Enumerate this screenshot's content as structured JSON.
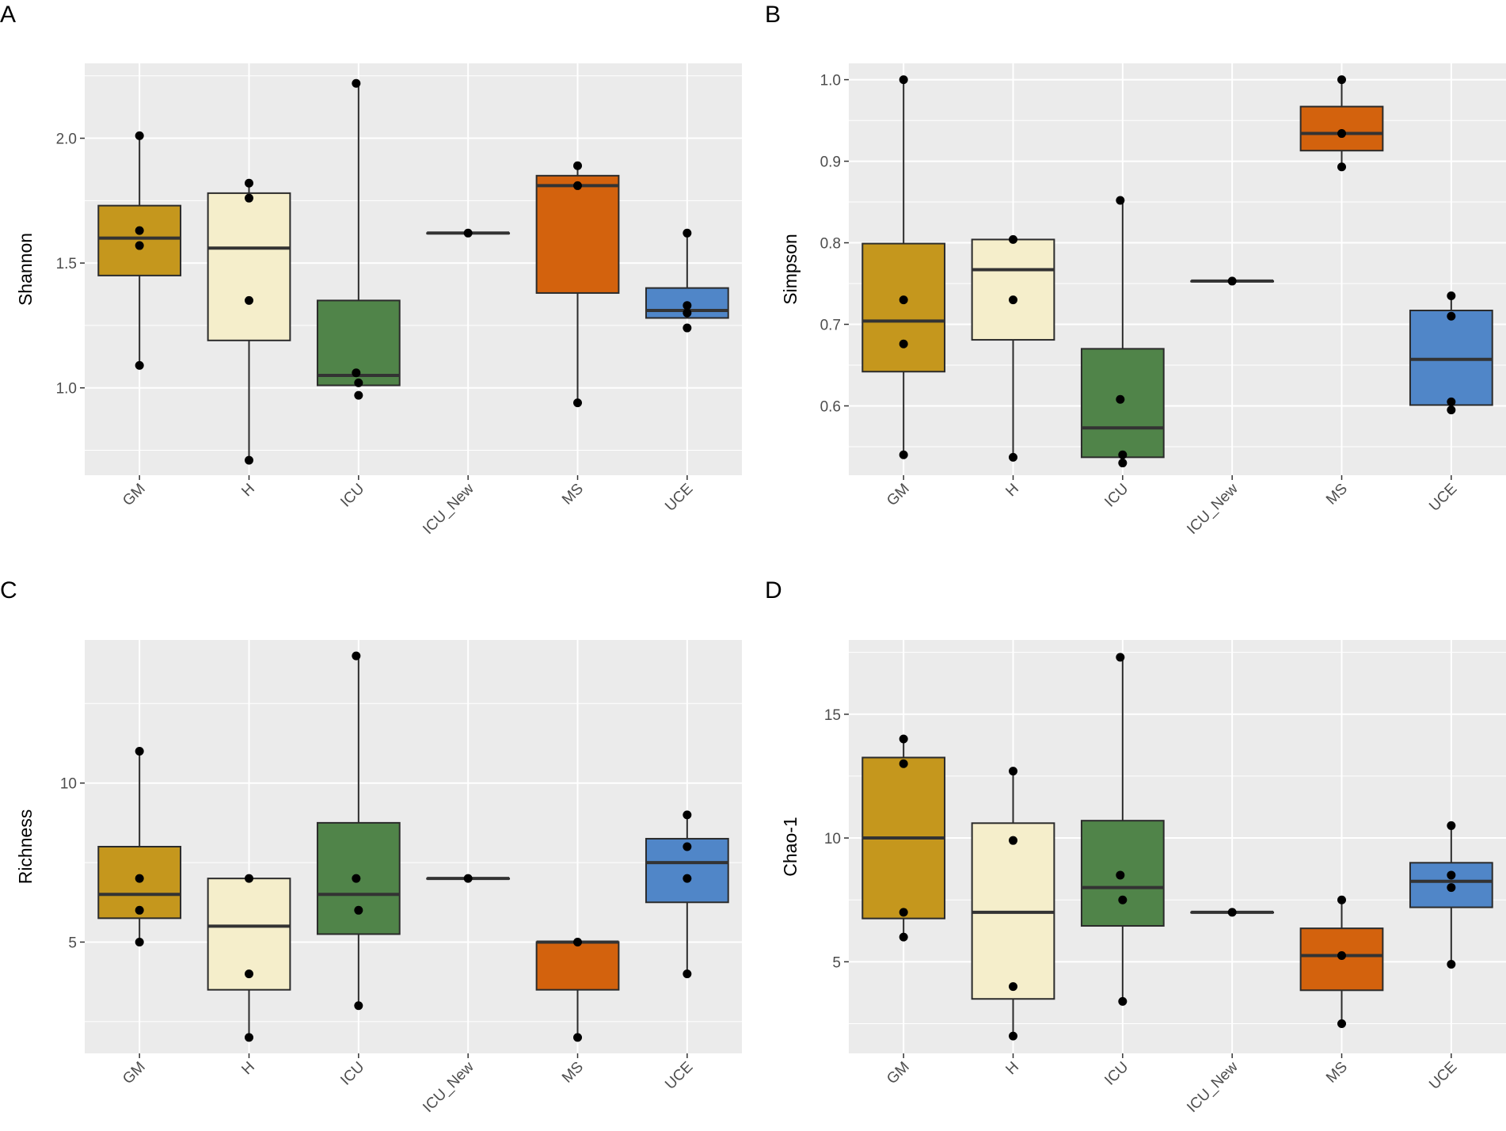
{
  "colors": {
    "GM": "#C5971D",
    "H": "#F5EECB",
    "ICU": "#508449",
    "ICU_New": "#F4ECC9",
    "MS": "#D3620D",
    "UCE": "#5086C8",
    "panel_bg": "#EBEBEB",
    "grid": "#FFFFFF",
    "box_stroke": "#2B2B2B",
    "point": "#000000"
  },
  "chart_data": [
    {
      "type": "box",
      "letter": "A",
      "ylabel": "Shannon",
      "ylim": [
        0.65,
        2.3
      ],
      "yticks": [
        1.0,
        1.5,
        2.0
      ],
      "ytick_labels": [
        "1.0",
        "1.5",
        "2.0"
      ],
      "categories": [
        "GM",
        "H",
        "ICU",
        "ICU_New",
        "MS",
        "UCE"
      ],
      "boxes": [
        {
          "cat": "GM",
          "min": 1.09,
          "q1": 1.45,
          "median": 1.6,
          "q3": 1.73,
          "max": 2.01,
          "points": [
            2.01,
            1.63,
            1.57,
            1.09
          ]
        },
        {
          "cat": "H",
          "min": 0.71,
          "q1": 1.19,
          "median": 1.56,
          "q3": 1.78,
          "max": 1.82,
          "points": [
            1.82,
            1.76,
            1.35,
            0.71
          ]
        },
        {
          "cat": "ICU",
          "min": 1.01,
          "q1": 1.01,
          "median": 1.05,
          "q3": 1.35,
          "max": 2.22,
          "points": [
            2.22,
            1.06,
            1.02,
            0.97
          ]
        },
        {
          "cat": "ICU_New",
          "min": 1.62,
          "q1": 1.62,
          "median": 1.62,
          "q3": 1.62,
          "max": 1.62,
          "points": [
            1.62
          ]
        },
        {
          "cat": "MS",
          "min": 0.94,
          "q1": 1.38,
          "median": 1.81,
          "q3": 1.85,
          "max": 1.89,
          "points": [
            1.89,
            1.81,
            0.94
          ]
        },
        {
          "cat": "UCE",
          "min": 1.28,
          "q1": 1.28,
          "median": 1.31,
          "q3": 1.4,
          "max": 1.62,
          "points": [
            1.62,
            1.33,
            1.3,
            1.24
          ]
        }
      ]
    },
    {
      "type": "box",
      "letter": "B",
      "ylabel": "Simpson",
      "ylim": [
        0.515,
        1.02
      ],
      "yticks": [
        0.6,
        0.7,
        0.8,
        0.9,
        1.0
      ],
      "ytick_labels": [
        "0.6",
        "0.7",
        "0.8",
        "0.9",
        "1.0"
      ],
      "categories": [
        "GM",
        "H",
        "ICU",
        "ICU_New",
        "MS",
        "UCE"
      ],
      "boxes": [
        {
          "cat": "GM",
          "min": 0.54,
          "q1": 0.642,
          "median": 0.704,
          "q3": 0.799,
          "max": 1.0,
          "points": [
            1.0,
            0.73,
            0.676,
            0.54
          ]
        },
        {
          "cat": "H",
          "min": 0.537,
          "q1": 0.681,
          "median": 0.767,
          "q3": 0.804,
          "max": 0.804,
          "points": [
            0.804,
            0.73,
            0.537
          ]
        },
        {
          "cat": "ICU",
          "min": 0.537,
          "q1": 0.537,
          "median": 0.573,
          "q3": 0.67,
          "max": 0.852,
          "points": [
            0.852,
            0.608,
            0.54,
            0.53
          ]
        },
        {
          "cat": "ICU_New",
          "min": 0.753,
          "q1": 0.753,
          "median": 0.753,
          "q3": 0.753,
          "max": 0.753,
          "points": [
            0.753
          ]
        },
        {
          "cat": "MS",
          "min": 0.893,
          "q1": 0.913,
          "median": 0.934,
          "q3": 0.967,
          "max": 1.0,
          "points": [
            1.0,
            0.934,
            0.893
          ]
        },
        {
          "cat": "UCE",
          "min": 0.601,
          "q1": 0.601,
          "median": 0.657,
          "q3": 0.717,
          "max": 0.735,
          "points": [
            0.735,
            0.71,
            0.605,
            0.595
          ]
        }
      ]
    },
    {
      "type": "box",
      "letter": "C",
      "ylabel": "Richness",
      "ylim": [
        1.5,
        14.5
      ],
      "yticks": [
        5,
        10
      ],
      "ytick_labels": [
        "5",
        "10"
      ],
      "categories": [
        "GM",
        "H",
        "ICU",
        "ICU_New",
        "MS",
        "UCE"
      ],
      "boxes": [
        {
          "cat": "GM",
          "min": 5,
          "q1": 5.75,
          "median": 6.5,
          "q3": 8,
          "max": 11,
          "points": [
            11,
            7,
            6,
            5
          ]
        },
        {
          "cat": "H",
          "min": 2,
          "q1": 3.5,
          "median": 5.5,
          "q3": 7,
          "max": 7,
          "points": [
            7,
            4,
            2
          ]
        },
        {
          "cat": "ICU",
          "min": 3,
          "q1": 5.25,
          "median": 6.5,
          "q3": 8.75,
          "max": 14,
          "points": [
            14,
            7,
            6,
            3
          ]
        },
        {
          "cat": "ICU_New",
          "min": 7,
          "q1": 7,
          "median": 7,
          "q3": 7,
          "max": 7,
          "points": [
            7
          ]
        },
        {
          "cat": "MS",
          "min": 2,
          "q1": 3.5,
          "median": 5,
          "q3": 5,
          "max": 5,
          "points": [
            5,
            2
          ]
        },
        {
          "cat": "UCE",
          "min": 4,
          "q1": 6.25,
          "median": 7.5,
          "q3": 8.25,
          "max": 9,
          "points": [
            9,
            8,
            7,
            4
          ]
        }
      ]
    },
    {
      "type": "box",
      "letter": "D",
      "ylabel": "Chao-1",
      "ylim": [
        1.3,
        18.0
      ],
      "yticks": [
        5,
        10,
        15
      ],
      "ytick_labels": [
        "5",
        "10",
        "15"
      ],
      "categories": [
        "GM",
        "H",
        "ICU",
        "ICU_New",
        "MS",
        "UCE"
      ],
      "boxes": [
        {
          "cat": "GM",
          "min": 6,
          "q1": 6.75,
          "median": 10,
          "q3": 13.25,
          "max": 14,
          "points": [
            14,
            13,
            7,
            6
          ]
        },
        {
          "cat": "H",
          "min": 2,
          "q1": 3.5,
          "median": 7,
          "q3": 10.6,
          "max": 12.7,
          "points": [
            12.7,
            9.9,
            4,
            2
          ]
        },
        {
          "cat": "ICU",
          "min": 3.4,
          "q1": 6.45,
          "median": 8,
          "q3": 10.7,
          "max": 17.3,
          "points": [
            17.3,
            8.5,
            7.5,
            3.4
          ]
        },
        {
          "cat": "ICU_New",
          "min": 7,
          "q1": 7,
          "median": 7,
          "q3": 7,
          "max": 7,
          "points": [
            7
          ]
        },
        {
          "cat": "MS",
          "min": 2.5,
          "q1": 3.85,
          "median": 5.25,
          "q3": 6.35,
          "max": 7.5,
          "points": [
            7.5,
            5.25,
            2.5
          ]
        },
        {
          "cat": "UCE",
          "min": 4.9,
          "q1": 7.2,
          "median": 8.25,
          "q3": 9.0,
          "max": 10.5,
          "points": [
            10.5,
            8.5,
            8.0,
            4.9
          ]
        }
      ]
    }
  ]
}
